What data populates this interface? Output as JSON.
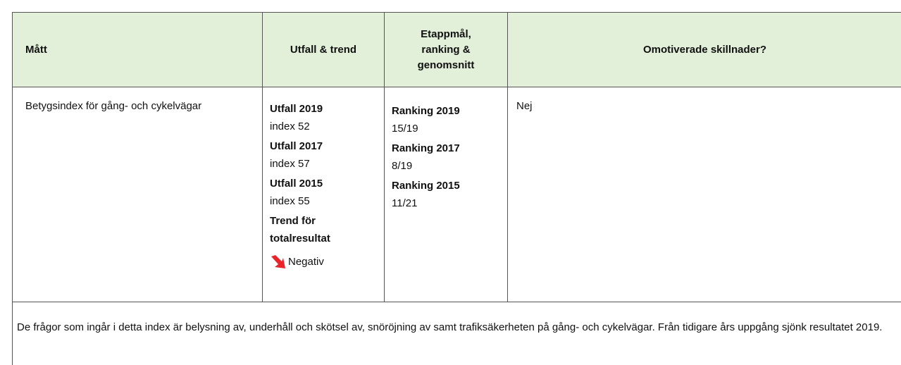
{
  "table": {
    "header": [
      "Mått",
      "Utfall & trend",
      "Etappmål, ranking & genomsnitt",
      "Omotiverade skillnader?"
    ],
    "row": {
      "measure": "Betygsindex för gång- och cykelvägar",
      "outcomes": [
        {
          "label": "Utfall 2019",
          "value": "index 52"
        },
        {
          "label": "Utfall 2017",
          "value": "index 57"
        },
        {
          "label": "Utfall 2015",
          "value": "index 55"
        }
      ],
      "trend": {
        "label": "Trend för totalresultat",
        "value": "Negativ"
      },
      "rankings": [
        {
          "label": "Ranking 2019",
          "value": "15/19"
        },
        {
          "label": "Ranking 2017",
          "value": "8/19"
        },
        {
          "label": "Ranking 2015",
          "value": "11/21"
        }
      ],
      "differences": "Nej"
    },
    "footer": "De frågor som ingår i detta index är belysning av, underhåll och skötsel av, snöröjning av samt trafiksäkerheten på gång- och cykelvägar. Från tidigare års uppgång sjönk resultatet 2019."
  }
}
